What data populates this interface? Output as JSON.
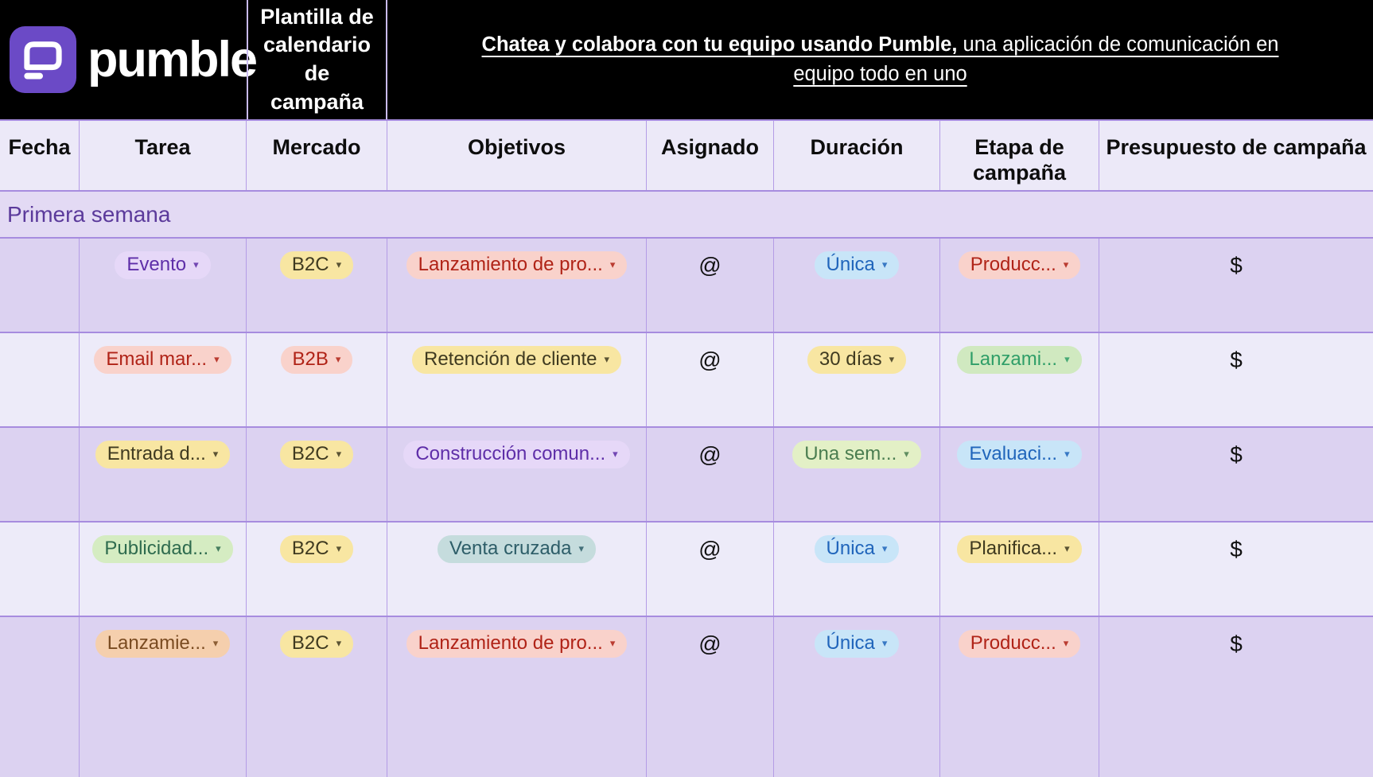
{
  "brand": {
    "logo_text": "pumble",
    "brand_purple": "#6b4ac6"
  },
  "header": {
    "template_title": "Plantilla de calendario de campaña",
    "link_bold": "Chatea y colabora con tu equipo usando Pumble,",
    "link_regular": " una aplicación de comunicación en equipo todo en uno"
  },
  "columns": [
    "Fecha",
    "Tarea",
    "Mercado",
    "Objetivos",
    "Asignado",
    "Duración",
    "Etapa de campaña",
    "Presupuesto de campaña"
  ],
  "section": {
    "title": "Primera semana"
  },
  "icons": {
    "dropdown": "▾"
  },
  "colors": {
    "border_purple": "#a78cdf",
    "row_dark_bg": "#dcd2f1",
    "row_light_bg": "#edebf9",
    "section_bg": "#e3daf4",
    "section_text": "#5b3a9b"
  },
  "palette": {
    "purple": {
      "bg": "#e6d8f8",
      "text": "#5e2ea8"
    },
    "yellow": {
      "bg": "#f8e6a2",
      "text": "#3f3a20"
    },
    "red": {
      "bg": "#f9d2cb",
      "text": "#b02317"
    },
    "blue": {
      "bg": "#c8e5f8",
      "text": "#2065bb"
    },
    "green": {
      "bg": "#d5ecc2",
      "text": "#2e6b4e"
    },
    "emerald": {
      "bg": "#d0e9c0",
      "text": "#2f9e68"
    },
    "lightgreen": {
      "bg": "#e3f0c6",
      "text": "#4a7d50"
    },
    "teal": {
      "bg": "#c5dcdd",
      "text": "#2d5d68"
    },
    "orange": {
      "bg": "#f5cfad",
      "text": "#7a4b21"
    }
  },
  "rows": [
    {
      "shade": "dark",
      "fecha": "",
      "tarea": {
        "label": "Evento",
        "color": "purple"
      },
      "mercado": {
        "label": "B2C",
        "color": "yellow"
      },
      "objetivos": {
        "label": "Lanzamiento de pro...",
        "color": "red"
      },
      "asignado": "@",
      "duracion": {
        "label": "Única",
        "color": "blue"
      },
      "etapa": {
        "label": "Producc...",
        "color": "red"
      },
      "presupuesto": "$"
    },
    {
      "shade": "light",
      "fecha": "",
      "tarea": {
        "label": "Email mar...",
        "color": "red"
      },
      "mercado": {
        "label": "B2B",
        "color": "red"
      },
      "objetivos": {
        "label": "Retención de cliente",
        "color": "yellow"
      },
      "asignado": "@",
      "duracion": {
        "label": "30 días",
        "color": "yellow"
      },
      "etapa": {
        "label": "Lanzami...",
        "color": "emerald"
      },
      "presupuesto": "$"
    },
    {
      "shade": "dark",
      "fecha": "",
      "tarea": {
        "label": "Entrada d...",
        "color": "yellow"
      },
      "mercado": {
        "label": "B2C",
        "color": "yellow"
      },
      "objetivos": {
        "label": "Construcción comun...",
        "color": "purple"
      },
      "asignado": "@",
      "duracion": {
        "label": "Una sem...",
        "color": "lightgreen"
      },
      "etapa": {
        "label": "Evaluaci...",
        "color": "blue"
      },
      "presupuesto": "$"
    },
    {
      "shade": "light",
      "fecha": "",
      "tarea": {
        "label": "Publicidad...",
        "color": "green"
      },
      "mercado": {
        "label": "B2C",
        "color": "yellow"
      },
      "objetivos": {
        "label": "Venta cruzada",
        "color": "teal"
      },
      "asignado": "@",
      "duracion": {
        "label": "Única",
        "color": "blue"
      },
      "etapa": {
        "label": "Planifica...",
        "color": "yellow"
      },
      "presupuesto": "$"
    },
    {
      "shade": "dark",
      "fecha": "",
      "tarea": {
        "label": "Lanzamie...",
        "color": "orange"
      },
      "mercado": {
        "label": "B2C",
        "color": "yellow"
      },
      "objetivos": {
        "label": "Lanzamiento de pro...",
        "color": "red"
      },
      "asignado": "@",
      "duracion": {
        "label": "Única",
        "color": "blue"
      },
      "etapa": {
        "label": "Producc...",
        "color": "red"
      },
      "presupuesto": "$"
    }
  ]
}
